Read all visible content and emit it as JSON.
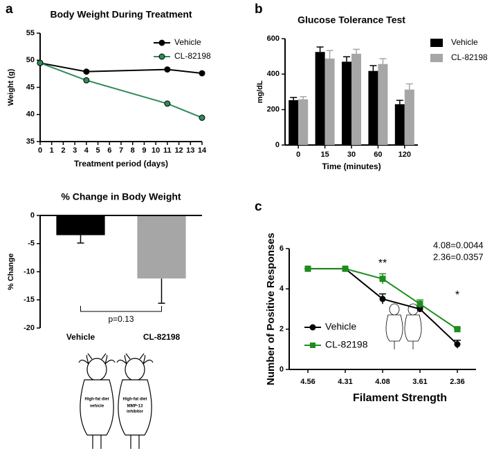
{
  "panel_labels": [
    "a",
    "b",
    "c"
  ],
  "illustration": {
    "mice": [
      {
        "lines": [
          "High-fat diet",
          "vehicle"
        ]
      },
      {
        "lines": [
          "High-fat diet",
          "MMP-13",
          "inhibitor"
        ]
      }
    ]
  },
  "chart_data": [
    {
      "type": "line",
      "title": "Body Weight During Treatment",
      "xlabel": "Treatment period (days)",
      "ylabel": "Weight (g)",
      "x": [
        0,
        4,
        11,
        14
      ],
      "series": [
        {
          "name": "Vehicle",
          "color": "#000000",
          "values": [
            49.5,
            47.9,
            48.3,
            47.6
          ]
        },
        {
          "name": "CL-82198",
          "color": "#2e8b57",
          "values": [
            49.5,
            46.3,
            42.0,
            39.4
          ]
        }
      ],
      "xlim": [
        0,
        14
      ],
      "xticks": [
        0,
        1,
        2,
        3,
        4,
        5,
        6,
        7,
        8,
        9,
        10,
        11,
        12,
        13,
        14
      ],
      "ylim": [
        35,
        55
      ],
      "yticks": [
        35,
        40,
        45,
        50,
        55
      ],
      "legend": "upper right"
    },
    {
      "type": "grouped_bar",
      "title": "Glucose Tolerance Test",
      "xlabel": "Time (minutes)",
      "ylabel": "mg/dL",
      "categories": [
        "0",
        "15",
        "30",
        "60",
        "120"
      ],
      "series": [
        {
          "name": "Vehicle",
          "color": "#000000",
          "values": [
            253,
            525,
            470,
            418,
            230
          ],
          "errors": [
            15,
            28,
            28,
            30,
            22
          ]
        },
        {
          "name": "CL-82198",
          "color": "#a6a6a6",
          "values": [
            258,
            488,
            515,
            457,
            313
          ],
          "errors": [
            15,
            45,
            25,
            30,
            32
          ]
        }
      ],
      "ylim": [
        0,
        600
      ],
      "yticks": [
        0,
        200,
        400,
        600
      ],
      "legend": "right"
    },
    {
      "type": "bar",
      "title": "% Change in Body Weight",
      "ylabel": "% Change",
      "categories": [
        "Vehicle",
        "CL-82198"
      ],
      "values": [
        -3.5,
        -11.2
      ],
      "errors": [
        1.4,
        4.4
      ],
      "colors": [
        "#000000",
        "#a6a6a6"
      ],
      "ylim": [
        -20,
        0
      ],
      "yticks": [
        -20,
        -15,
        -10,
        -5,
        0
      ],
      "annotations": [
        "p=0.13"
      ]
    },
    {
      "type": "category_line",
      "xlabel": "Filament Strength",
      "ylabel": "Number of Positive Responses",
      "categories": [
        "4.56",
        "4.31",
        "4.08",
        "3.61",
        "2.36"
      ],
      "series": [
        {
          "name": "Vehicle",
          "color": "#000000",
          "marker": "circle",
          "values": [
            5,
            5,
            3.5,
            3.0,
            1.25
          ],
          "errors": [
            0,
            0,
            0.25,
            0.1,
            0.2
          ]
        },
        {
          "name": "CL-82198",
          "color": "#1e8c1e",
          "marker": "square",
          "values": [
            5,
            5,
            4.5,
            3.25,
            2.0
          ],
          "errors": [
            0,
            0,
            0.25,
            0.2,
            0.05
          ]
        }
      ],
      "ylim": [
        0,
        6
      ],
      "yticks": [
        0,
        2,
        4,
        6
      ],
      "legend": "center left",
      "annotations": [
        "**",
        "*",
        "4.08=0.0044",
        "2.36=0.0357"
      ]
    }
  ]
}
